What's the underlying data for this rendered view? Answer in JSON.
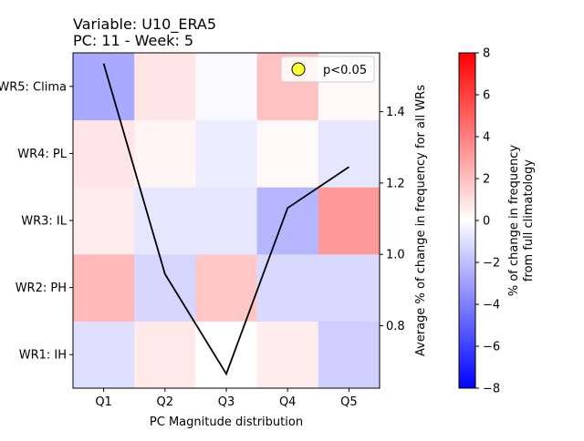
{
  "chart_data": {
    "type": "heatmap",
    "title_lines": [
      "Variable: U10_ERA5",
      "PC: 11 - Week: 5"
    ],
    "xlabel": "PC Magnitude distribution",
    "x_categories": [
      "Q1",
      "Q2",
      "Q3",
      "Q4",
      "Q5"
    ],
    "y_categories": [
      "WR1: IH",
      "WR2: PH",
      "WR3: IL",
      "WR4: PL",
      "WR5: Clima"
    ],
    "heatmap_values": [
      [
        -1.0,
        0.7,
        0.0,
        0.6,
        -1.5
      ],
      [
        2.2,
        -1.3,
        1.8,
        -1.2,
        -1.2
      ],
      [
        0.6,
        -0.8,
        -0.8,
        -2.3,
        3.2
      ],
      [
        0.8,
        0.3,
        -0.6,
        0.2,
        -0.8
      ],
      [
        -2.7,
        0.8,
        -0.2,
        1.9,
        0.2
      ]
    ],
    "colormap": "bwr",
    "color_range": [
      -8,
      8
    ],
    "colorbar_label_lines": [
      "% of change in frequency",
      "from full climatology"
    ],
    "colorbar_ticks": [
      "8",
      "6",
      "4",
      "2",
      "0",
      "−2",
      "−4",
      "−6",
      "−8"
    ],
    "line_series": {
      "x": [
        "Q1",
        "Q2",
        "Q3",
        "Q4",
        "Q5"
      ],
      "values": [
        1.535,
        0.945,
        0.665,
        1.13,
        1.245
      ],
      "color": "#000000"
    },
    "right_axis": {
      "label": "Average % of change in frequency for all WRs",
      "ylim": [
        0.625,
        1.565
      ],
      "ticks": [
        "1.4",
        "1.2",
        "1.0",
        "0.8"
      ]
    },
    "legend": {
      "label": "p<0.05",
      "marker_color": "#ffff33",
      "placement": "top-right"
    }
  }
}
